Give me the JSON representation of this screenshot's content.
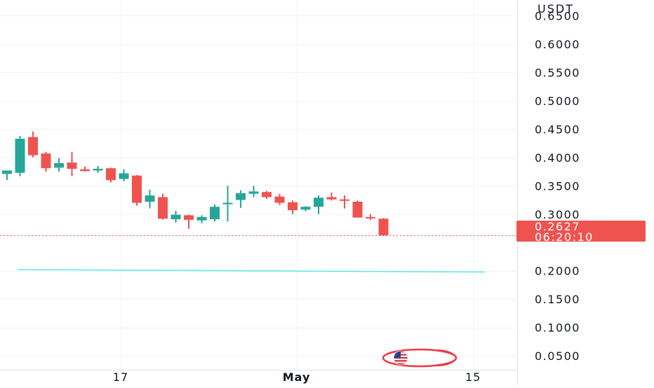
{
  "chart_data": {
    "type": "candlestick",
    "currency_unit": "USDT",
    "y_axis": {
      "range": [
        0.0255,
        0.6777
      ],
      "ticks": [
        "0.6500",
        "0.6000",
        "0.5500",
        "0.5000",
        "0.4500",
        "0.4000",
        "0.3500",
        "0.3000",
        "0.2000",
        "0.1500",
        "0.1000",
        "0.0500"
      ]
    },
    "x_axis": {
      "ticks": [
        {
          "label": "17",
          "bar": 8.75,
          "bold": false
        },
        {
          "label": "May",
          "bar": 22.3,
          "bold": true
        },
        {
          "label": "15",
          "bar": 35.9,
          "bold": false
        }
      ]
    },
    "candles": [
      {
        "o": 0.371,
        "h": 0.377,
        "l": 0.36,
        "c": 0.377
      },
      {
        "o": 0.373,
        "h": 0.438,
        "l": 0.367,
        "c": 0.433
      },
      {
        "o": 0.436,
        "h": 0.446,
        "l": 0.4,
        "c": 0.404
      },
      {
        "o": 0.407,
        "h": 0.41,
        "l": 0.375,
        "c": 0.381
      },
      {
        "o": 0.382,
        "h": 0.399,
        "l": 0.375,
        "c": 0.39
      },
      {
        "o": 0.391,
        "h": 0.41,
        "l": 0.367,
        "c": 0.38
      },
      {
        "o": 0.379,
        "h": 0.384,
        "l": 0.375,
        "c": 0.376
      },
      {
        "o": 0.377,
        "h": 0.385,
        "l": 0.373,
        "c": 0.38
      },
      {
        "o": 0.381,
        "h": 0.382,
        "l": 0.356,
        "c": 0.36
      },
      {
        "o": 0.362,
        "h": 0.379,
        "l": 0.358,
        "c": 0.372
      },
      {
        "o": 0.368,
        "h": 0.369,
        "l": 0.315,
        "c": 0.32
      },
      {
        "o": 0.322,
        "h": 0.343,
        "l": 0.31,
        "c": 0.333
      },
      {
        "o": 0.33,
        "h": 0.336,
        "l": 0.29,
        "c": 0.292
      },
      {
        "o": 0.291,
        "h": 0.306,
        "l": 0.285,
        "c": 0.299
      },
      {
        "o": 0.298,
        "h": 0.299,
        "l": 0.274,
        "c": 0.29
      },
      {
        "o": 0.289,
        "h": 0.298,
        "l": 0.284,
        "c": 0.295
      },
      {
        "o": 0.291,
        "h": 0.317,
        "l": 0.287,
        "c": 0.313
      },
      {
        "o": 0.318,
        "h": 0.35,
        "l": 0.287,
        "c": 0.32
      },
      {
        "o": 0.325,
        "h": 0.342,
        "l": 0.311,
        "c": 0.337
      },
      {
        "o": 0.336,
        "h": 0.35,
        "l": 0.33,
        "c": 0.34
      },
      {
        "o": 0.339,
        "h": 0.341,
        "l": 0.327,
        "c": 0.33
      },
      {
        "o": 0.331,
        "h": 0.336,
        "l": 0.316,
        "c": 0.32
      },
      {
        "o": 0.321,
        "h": 0.324,
        "l": 0.3,
        "c": 0.307
      },
      {
        "o": 0.308,
        "h": 0.314,
        "l": 0.305,
        "c": 0.313
      },
      {
        "o": 0.313,
        "h": 0.333,
        "l": 0.3,
        "c": 0.329
      },
      {
        "o": 0.33,
        "h": 0.338,
        "l": 0.324,
        "c": 0.326
      },
      {
        "o": 0.326,
        "h": 0.333,
        "l": 0.31,
        "c": 0.325
      },
      {
        "o": 0.322,
        "h": 0.324,
        "l": 0.294,
        "c": 0.294
      },
      {
        "o": 0.295,
        "h": 0.3,
        "l": 0.29,
        "c": 0.294
      },
      {
        "o": 0.292,
        "h": 0.293,
        "l": 0.263,
        "c": 0.2627
      }
    ],
    "support_line": {
      "start_value": 0.2022,
      "end_value": 0.1979,
      "start_bar": 0.8,
      "end_bar": 36.8
    },
    "last_price": {
      "value": 0.2627,
      "label": "0.2627",
      "countdown": "06:20:10"
    },
    "bullish_color": "#26a69a",
    "bearish_color": "#ef5350",
    "support_line_color": "#5ce6ea",
    "grid": true,
    "icons": [
      "us-flag-icon"
    ]
  }
}
